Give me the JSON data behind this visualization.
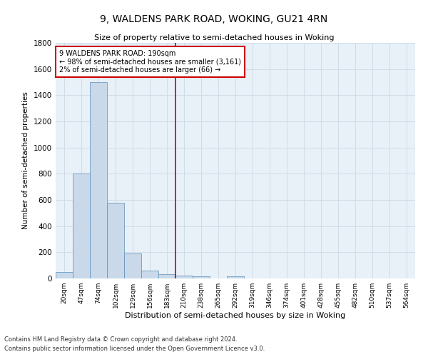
{
  "title": "9, WALDENS PARK ROAD, WOKING, GU21 4RN",
  "subtitle": "Size of property relative to semi-detached houses in Woking",
  "xlabel": "Distribution of semi-detached houses by size in Woking",
  "ylabel": "Number of semi-detached properties",
  "footnote1": "Contains HM Land Registry data © Crown copyright and database right 2024.",
  "footnote2": "Contains public sector information licensed under the Open Government Licence v3.0.",
  "annotation_title": "9 WALDENS PARK ROAD: 190sqm",
  "annotation_line1": "← 98% of semi-detached houses are smaller (3,161)",
  "annotation_line2": "2% of semi-detached houses are larger (66) →",
  "bar_categories": [
    "20sqm",
    "47sqm",
    "74sqm",
    "102sqm",
    "129sqm",
    "156sqm",
    "183sqm",
    "210sqm",
    "238sqm",
    "265sqm",
    "292sqm",
    "319sqm",
    "346sqm",
    "374sqm",
    "401sqm",
    "428sqm",
    "455sqm",
    "482sqm",
    "510sqm",
    "537sqm",
    "564sqm"
  ],
  "bar_values": [
    50,
    800,
    1500,
    580,
    190,
    60,
    35,
    20,
    15,
    0,
    15,
    0,
    0,
    0,
    0,
    0,
    0,
    0,
    0,
    0,
    0
  ],
  "bar_color": "#c9d9ea",
  "bar_edge_color": "#5b8db8",
  "vline_color": "#cc0000",
  "vline_x": 6.5,
  "ylim": [
    0,
    1800
  ],
  "yticks": [
    0,
    200,
    400,
    600,
    800,
    1000,
    1200,
    1400,
    1600,
    1800
  ],
  "grid_color": "#d0dce8",
  "background_color": "#e8f0f8",
  "annotation_box_color": "#ffffff",
  "annotation_box_edge": "#cc0000"
}
